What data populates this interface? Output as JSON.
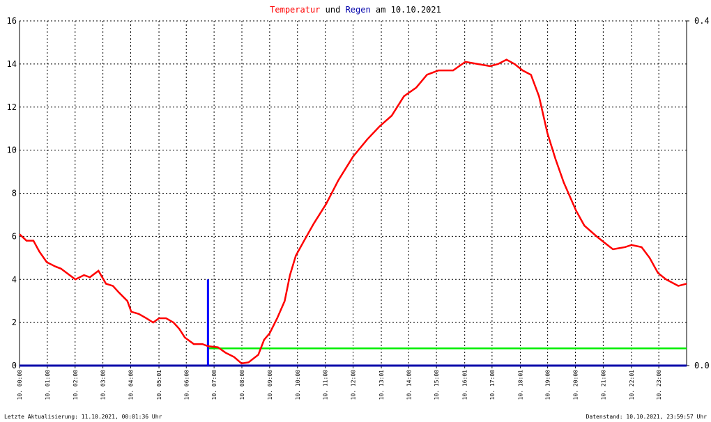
{
  "chart_data": {
    "type": "line",
    "title_joiner": "und",
    "title_suffix": "am 10.10.2021",
    "footer_left": "Letzte Aktualisierung: 11.10.2021, 00:01:36 Uhr",
    "footer_right": "Datenstand: 10.10.2021, 23:59:57 Uhr",
    "xlim": [
      0,
      24
    ],
    "xticks": [
      {
        "value": 0,
        "label": "10. 00:00"
      },
      {
        "value": 1,
        "label": "10. 01:00"
      },
      {
        "value": 2,
        "label": "10. 02:00"
      },
      {
        "value": 3,
        "label": "10. 03:00"
      },
      {
        "value": 4,
        "label": "10. 04:00"
      },
      {
        "value": 5.017,
        "label": "10. 05:01"
      },
      {
        "value": 6,
        "label": "10. 06:00"
      },
      {
        "value": 7,
        "label": "10. 07:00"
      },
      {
        "value": 8,
        "label": "10. 08:00"
      },
      {
        "value": 9,
        "label": "10. 09:00"
      },
      {
        "value": 10,
        "label": "10. 10:00"
      },
      {
        "value": 11,
        "label": "10. 11:00"
      },
      {
        "value": 12,
        "label": "10. 12:00"
      },
      {
        "value": 13.017,
        "label": "10. 13:01"
      },
      {
        "value": 14,
        "label": "10. 14:00"
      },
      {
        "value": 15,
        "label": "10. 15:00"
      },
      {
        "value": 16.017,
        "label": "10. 16:01"
      },
      {
        "value": 17,
        "label": "10. 17:00"
      },
      {
        "value": 18.017,
        "label": "10. 18:01"
      },
      {
        "value": 19,
        "label": "10. 19:00"
      },
      {
        "value": 20,
        "label": "10. 20:00"
      },
      {
        "value": 21,
        "label": "10. 21:00"
      },
      {
        "value": 22.017,
        "label": "10. 22:01"
      },
      {
        "value": 23,
        "label": "10. 23:00"
      }
    ],
    "ylim": [
      0,
      16
    ],
    "yticks": [
      0,
      2,
      4,
      6,
      8,
      10,
      12,
      14,
      16
    ],
    "y2lim": [
      0,
      0.4
    ],
    "y2ticks": [
      {
        "value": 0,
        "label": "0.0"
      },
      0.4
    ],
    "grid": true,
    "series": [
      {
        "name": "Temperatur",
        "color": "#ff0000",
        "kind": "line",
        "x": [
          0,
          0.25,
          0.5,
          0.71,
          0.98,
          1.29,
          1.49,
          1.7,
          2.01,
          2.32,
          2.53,
          2.84,
          3.11,
          3.36,
          3.57,
          3.88,
          4.02,
          4.29,
          4.56,
          4.81,
          5.02,
          5.27,
          5.54,
          5.75,
          5.95,
          6.27,
          6.58,
          6.78,
          7.14,
          7.41,
          7.72,
          7.99,
          8.24,
          8.59,
          8.8,
          9,
          9.27,
          9.54,
          9.73,
          9.94,
          10.24,
          10.59,
          11.03,
          11.47,
          12,
          12.51,
          12.95,
          13.39,
          13.83,
          14.27,
          14.66,
          15.07,
          15.6,
          16.04,
          16.48,
          16.93,
          17.22,
          17.52,
          17.81,
          18.1,
          18.4,
          18.69,
          18.99,
          19.28,
          19.58,
          20.02,
          20.32,
          20.76,
          21.05,
          21.35,
          21.79,
          22.02,
          22.38,
          22.67,
          22.97,
          23.26,
          23.7,
          24
        ],
        "values": [
          6.1,
          5.8,
          5.8,
          5.3,
          4.8,
          4.6,
          4.5,
          4.3,
          4,
          4.2,
          4.1,
          4.4,
          3.8,
          3.7,
          3.4,
          3,
          2.5,
          2.4,
          2.2,
          2,
          2.2,
          2.2,
          2,
          1.7,
          1.3,
          1,
          1,
          0.9,
          0.85,
          0.6,
          0.4,
          0.1,
          0.15,
          0.5,
          1.2,
          1.5,
          2.2,
          3,
          4.2,
          5.1,
          5.8,
          6.6,
          7.5,
          8.6,
          9.7,
          10.5,
          11.1,
          11.6,
          12.5,
          12.9,
          13.5,
          13.7,
          13.7,
          14.1,
          14,
          13.9,
          14,
          14.2,
          14,
          13.7,
          13.5,
          12.5,
          10.8,
          9.6,
          8.5,
          7.2,
          6.5,
          6,
          5.7,
          5.4,
          5.5,
          5.6,
          5.5,
          5,
          4.3,
          4,
          3.7,
          3.8
        ]
      },
      {
        "name": "Regen",
        "color": "#0000ff",
        "kind": "bar",
        "axis": "y2",
        "x": [
          6.78
        ],
        "values": [
          0.1
        ]
      },
      {
        "color": "#00ee00",
        "kind": "line",
        "axis": "y2",
        "x": [
          6.78,
          24
        ],
        "values": [
          0.02,
          0.02
        ]
      }
    ]
  }
}
